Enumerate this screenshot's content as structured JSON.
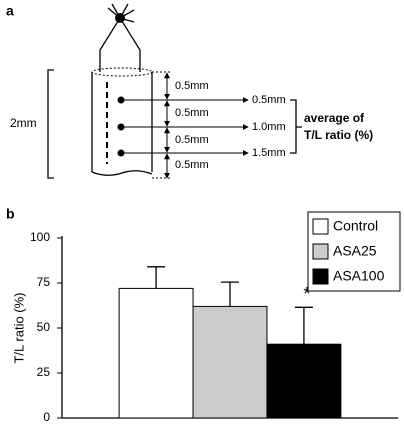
{
  "panel_a": {
    "label": "a",
    "height_label": "2mm",
    "spacing_labels": [
      "0.5mm",
      "0.5mm",
      "0.5mm",
      "0.5mm"
    ],
    "depth_labels": [
      "0.5mm",
      "1.0mm",
      "1.5mm"
    ],
    "average_label": [
      "average of",
      "T/L ratio (%)"
    ]
  },
  "chart_data": {
    "type": "bar",
    "panel_label": "b",
    "y_label": "T/L ratio (%)",
    "categories": [
      null
    ],
    "series": [
      {
        "name": "Control",
        "color": "#ffffff",
        "values": [
          72
        ],
        "errors": [
          12
        ]
      },
      {
        "name": "ASA25",
        "color": "#cccccc",
        "values": [
          62
        ],
        "errors": [
          13.5
        ]
      },
      {
        "name": "ASA100",
        "color": "#000000",
        "values": [
          41
        ],
        "errors": [
          20.5
        ]
      }
    ],
    "annotation": "*",
    "ylim": [
      0,
      100
    ],
    "yticks": [
      0,
      25,
      50,
      75,
      100
    ],
    "legend": "top-right"
  }
}
